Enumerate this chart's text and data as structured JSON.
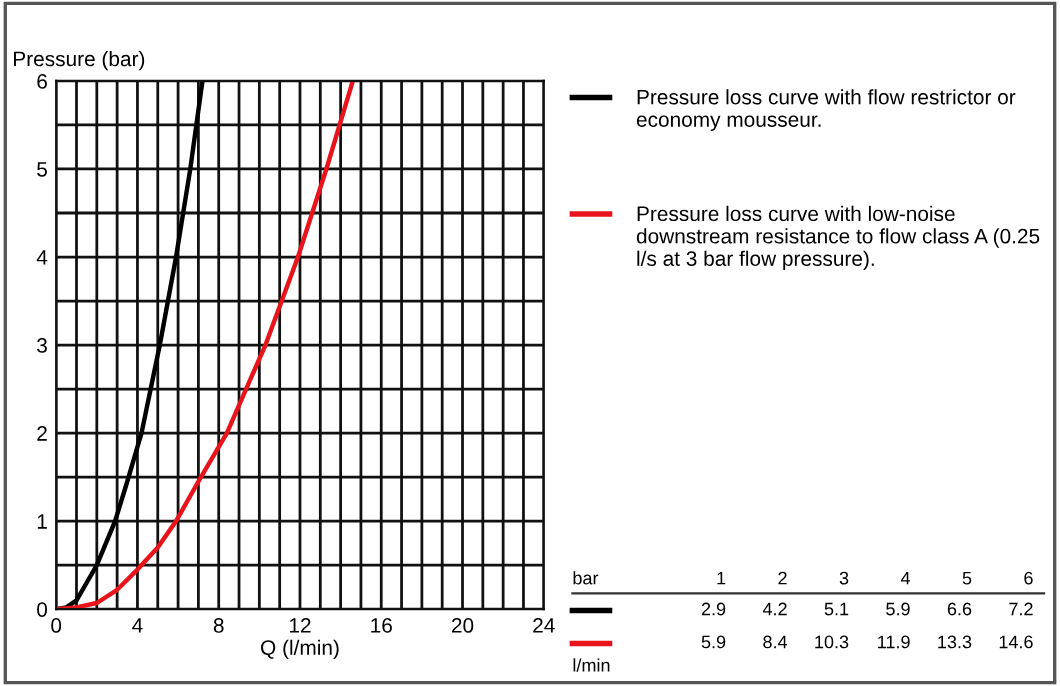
{
  "chart_data": {
    "type": "line",
    "ylabel": "Pressure (bar)",
    "xlabel": "Q (l/min)",
    "xlim": [
      0,
      24
    ],
    "ylim": [
      0,
      6
    ],
    "xticks": [
      0,
      {
        "value": 1,
        "label": null
      },
      {
        "value": 2,
        "label": null
      },
      {
        "value": 3,
        "label": null
      },
      4,
      {
        "value": 5,
        "label": null
      },
      {
        "value": 6,
        "label": null
      },
      {
        "value": 7,
        "label": null
      },
      8,
      {
        "value": 9,
        "label": null
      },
      {
        "value": 10,
        "label": null
      },
      {
        "value": 11,
        "label": null
      },
      12,
      {
        "value": 13,
        "label": null
      },
      {
        "value": 14,
        "label": null
      },
      {
        "value": 15,
        "label": null
      },
      16,
      {
        "value": 17,
        "label": null
      },
      {
        "value": 18,
        "label": null
      },
      {
        "value": 19,
        "label": null
      },
      20,
      {
        "value": 21,
        "label": null
      },
      {
        "value": 22,
        "label": null
      },
      {
        "value": 23,
        "label": null
      },
      24
    ],
    "yticks": [
      0,
      {
        "value": 0.5,
        "label": null
      },
      1,
      {
        "value": 1.5,
        "label": null
      },
      2,
      {
        "value": 2.5,
        "label": null
      },
      3,
      {
        "value": 3.5,
        "label": null
      },
      4,
      {
        "value": 4.5,
        "label": null
      },
      5,
      {
        "value": 5.5,
        "label": null
      },
      6
    ],
    "grid": true,
    "legend": "right",
    "marker": "none",
    "line_style": "solid",
    "series": [
      {
        "name": "Pressure loss curve with flow restrictor or economy mousseur.",
        "color": "#000000",
        "x": [
          0,
          0.5,
          1,
          1.5,
          2,
          2.9,
          3.5,
          4.2,
          5.1,
          5.9,
          6.6,
          7.2
        ],
        "values": [
          0,
          0.02,
          0.1,
          0.3,
          0.5,
          1,
          1.45,
          2,
          3,
          4,
          5,
          6
        ]
      },
      {
        "name": "Pressure loss curve with low-noise downstream resistance to flow class A (0.25 l/s at 3 bar flow pressure).",
        "color": "#e8141b",
        "x": [
          0,
          1,
          2,
          3,
          4,
          5,
          5.9,
          7,
          8.4,
          10.3,
          11.9,
          13.3,
          14.6
        ],
        "values": [
          0,
          0.02,
          0.07,
          0.22,
          0.45,
          0.7,
          1,
          1.45,
          2,
          3,
          4,
          5,
          6
        ]
      }
    ],
    "annotations": [
      "bar",
      "1",
      "2",
      "3",
      "4",
      "5",
      "6",
      "2.9",
      "4.2",
      "5.1",
      "5.9",
      "6.6",
      "7.2",
      "5.9",
      "8.4",
      "10.3",
      "11.9",
      "13.3",
      "14.6",
      "l/min"
    ]
  }
}
